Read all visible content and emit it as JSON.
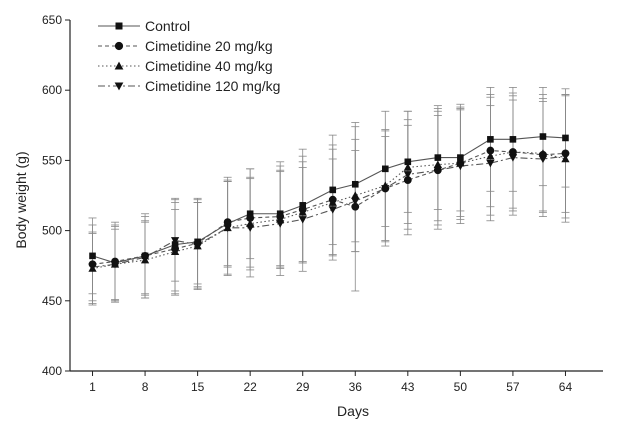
{
  "chart_data": {
    "type": "line",
    "xlabel": "Days",
    "ylabel": "Body weight (g)",
    "x": [
      1,
      4,
      8,
      12,
      15,
      19,
      22,
      26,
      29,
      33,
      36,
      40,
      43,
      47,
      50,
      54,
      57,
      61,
      64
    ],
    "x_ticks": [
      1,
      8,
      15,
      22,
      29,
      36,
      43,
      50,
      57,
      64
    ],
    "y_ticks": [
      400,
      450,
      500,
      550,
      600,
      650
    ],
    "xlim": [
      -2,
      69
    ],
    "ylim": [
      400,
      650
    ],
    "grid": false,
    "legend_position": "top-left",
    "series": [
      {
        "name": "Control",
        "marker": "square",
        "line_style": "solid",
        "values": [
          482,
          477,
          482,
          490,
          492,
          505,
          512,
          512,
          518,
          529,
          533,
          544,
          549,
          552,
          552,
          565,
          565,
          567,
          566
        ],
        "errors": [
          27,
          27,
          28,
          33,
          30,
          30,
          32,
          37,
          40,
          39,
          41,
          41,
          36,
          37,
          38,
          37,
          37,
          35,
          35
        ]
      },
      {
        "name": "Cimetidine 20  mg/kg",
        "marker": "circle",
        "line_style": "dashed",
        "values": [
          476,
          478,
          482,
          487,
          491,
          506,
          509,
          510,
          515,
          522,
          517,
          530,
          536,
          543,
          548,
          557,
          556,
          554,
          555
        ],
        "errors": [
          28,
          28,
          30,
          33,
          32,
          32,
          35,
          36,
          38,
          39,
          60,
          41,
          39,
          42,
          38,
          40,
          40,
          40,
          42
        ]
      },
      {
        "name": "Cimetidine 40  mg/kg",
        "marker": "triangle-up",
        "line_style": "dotted",
        "values": [
          473,
          476,
          479,
          485,
          489,
          502,
          505,
          508,
          513,
          520,
          525,
          532,
          545,
          547,
          548,
          553,
          556,
          555,
          551
        ],
        "errors": [
          26,
          27,
          27,
          30,
          31,
          33,
          33,
          35,
          36,
          38,
          40,
          40,
          40,
          40,
          40,
          42,
          42,
          42,
          45
        ]
      },
      {
        "name": "Cimetidine 120  mg/kg",
        "marker": "triangle-down",
        "line_style": "dashdot",
        "values": [
          474,
          476,
          481,
          493,
          490,
          502,
          502,
          505,
          508,
          515,
          521,
          530,
          540,
          543,
          546,
          548,
          552,
          551,
          553
        ],
        "errors": [
          24,
          25,
          26,
          29,
          30,
          34,
          35,
          37,
          37,
          36,
          36,
          37,
          39,
          39,
          41,
          41,
          41,
          41,
          44
        ]
      }
    ]
  }
}
